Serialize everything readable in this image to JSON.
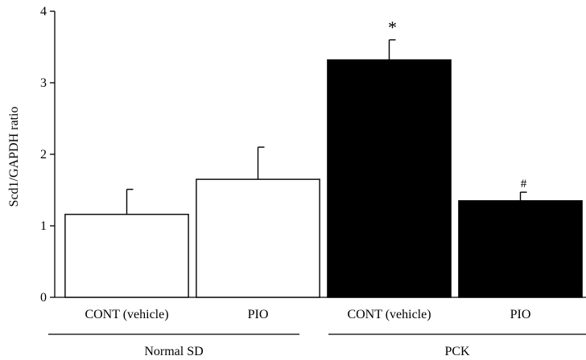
{
  "chart_data": {
    "type": "bar",
    "title": "",
    "xlabel": "",
    "ylabel": "Scd1/GAPDH ratio",
    "ylim": [
      0,
      4
    ],
    "yticks": [
      "0",
      "1",
      "2",
      "3",
      "4"
    ],
    "categories": [
      "CONT (vehicle)",
      "PIO",
      "CONT (vehicle)",
      "PIO"
    ],
    "groups": [
      {
        "label": "Normal SD",
        "categories": [
          0,
          1
        ]
      },
      {
        "label": "PCK",
        "categories": [
          2,
          3
        ]
      }
    ],
    "values": [
      1.16,
      1.65,
      3.32,
      1.35
    ],
    "errors": [
      0.35,
      0.45,
      0.28,
      0.12
    ],
    "fill_colors": [
      "#ffffff",
      "#ffffff",
      "#000000",
      "#000000"
    ],
    "annotations": [
      "",
      "",
      "*",
      "#"
    ],
    "grid": false,
    "legend": "none"
  }
}
